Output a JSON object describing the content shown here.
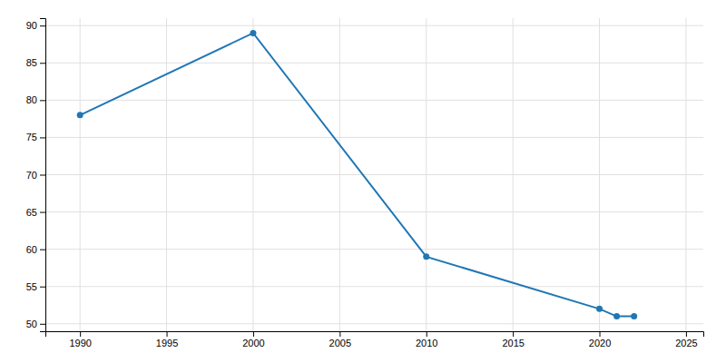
{
  "chart_data": {
    "type": "line",
    "x": [
      1990,
      2000,
      2010,
      2020,
      2021,
      2022
    ],
    "values": [
      78,
      89,
      59,
      52,
      51,
      51
    ],
    "marker": "circle",
    "xlim": [
      1988,
      2026
    ],
    "ylim": [
      49,
      91
    ],
    "xticks": [
      1990,
      1995,
      2000,
      2005,
      2010,
      2015,
      2020,
      2025
    ],
    "yticks": [
      50,
      55,
      60,
      65,
      70,
      75,
      80,
      85,
      90
    ],
    "grid": true
  }
}
